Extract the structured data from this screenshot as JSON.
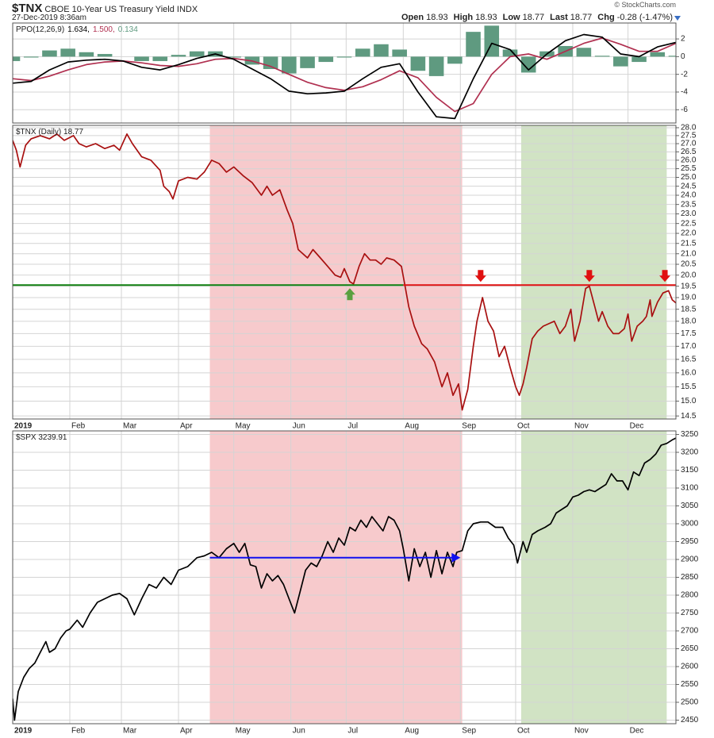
{
  "header": {
    "symbol": "$TNX",
    "name": "CBOE 10-Year US Treasury Yield",
    "exchange": "INDX",
    "timestamp": "27-Dec-2019 8:36am",
    "copyright": "© StockCharts.com",
    "quote": [
      {
        "label": "Open",
        "value": 18.93
      },
      {
        "label": "High",
        "value": 18.93
      },
      {
        "label": "Low",
        "value": 18.77
      },
      {
        "label": "Last",
        "value": 18.77
      },
      {
        "label": "Chg",
        "value": "-0.28 (-1.47%)"
      }
    ]
  },
  "shading": [
    {
      "x0": 107,
      "x1": 244,
      "color": "#f4b8bb"
    },
    {
      "x0": 276,
      "x1": 355,
      "color": "#c2d9b0"
    }
  ],
  "chart_data": [
    {
      "type": "line",
      "title": "PPO(12,26,9)",
      "legend_values": [
        "1.634,",
        "1.500,",
        "0.134"
      ],
      "xlim": [
        0,
        360
      ],
      "ylim": [
        -7.5,
        3.8
      ],
      "yticks": [
        2,
        0,
        -2,
        -4,
        -6
      ],
      "grid": true,
      "x": [
        0,
        10,
        20,
        30,
        40,
        50,
        60,
        70,
        80,
        90,
        100,
        110,
        120,
        130,
        140,
        150,
        160,
        170,
        180,
        190,
        200,
        210,
        220,
        230,
        240,
        250,
        260,
        270,
        280,
        290,
        300,
        310,
        320,
        330,
        340,
        350,
        360
      ],
      "series": [
        {
          "type": "bar",
          "color": "#5f9a80",
          "values": [
            -0.5,
            -0.1,
            0.7,
            0.9,
            0.5,
            0.3,
            0.0,
            -0.5,
            -0.5,
            0.2,
            0.6,
            0.6,
            -0.1,
            -0.9,
            -1.4,
            -1.9,
            -1.3,
            -0.6,
            -0.1,
            0.9,
            1.4,
            0.8,
            -1.6,
            -2.2,
            -0.8,
            2.8,
            3.5,
            0.8,
            -1.8,
            0.6,
            1.2,
            1.0,
            0.1,
            -1.1,
            -0.6,
            0.5,
            0.1
          ]
        },
        {
          "type": "line",
          "color": "#b03050",
          "values": [
            -2.5,
            -2.7,
            -2.2,
            -1.5,
            -0.9,
            -0.6,
            -0.5,
            -0.7,
            -1.0,
            -1.1,
            -0.8,
            -0.3,
            -0.2,
            -0.5,
            -1.1,
            -2.0,
            -2.9,
            -3.5,
            -3.8,
            -3.4,
            -2.6,
            -1.6,
            -2.4,
            -4.6,
            -6.2,
            -5.3,
            -2.0,
            0.0,
            0.3,
            -0.3,
            0.6,
            1.5,
            2.1,
            1.4,
            0.6,
            0.6,
            1.5
          ]
        },
        {
          "type": "line",
          "color": "#000000",
          "values": [
            -3.0,
            -2.8,
            -1.5,
            -0.6,
            -0.4,
            -0.3,
            -0.5,
            -1.2,
            -1.5,
            -0.9,
            -0.2,
            0.3,
            -0.3,
            -1.4,
            -2.5,
            -3.9,
            -4.2,
            -4.1,
            -3.9,
            -2.5,
            -1.2,
            -0.8,
            -4.0,
            -6.8,
            -7.0,
            -2.5,
            1.5,
            0.8,
            -1.5,
            0.3,
            1.8,
            2.5,
            2.2,
            0.3,
            0.0,
            1.1,
            1.6
          ]
        }
      ]
    },
    {
      "type": "line",
      "title": "$TNX (Daily) 18.77",
      "log_scale": true,
      "grid": true,
      "show_shading": true,
      "xlim": [
        0,
        360
      ],
      "xticks": [
        {
          "value": 0,
          "label": "2019"
        },
        {
          "value": 31,
          "label": "Feb"
        },
        {
          "value": 59,
          "label": "Mar"
        },
        {
          "value": 90,
          "label": "Apr"
        },
        {
          "value": 120,
          "label": "May"
        },
        {
          "value": 151,
          "label": "Jun"
        },
        {
          "value": 181,
          "label": "Jul"
        },
        {
          "value": 212,
          "label": "Aug"
        },
        {
          "value": 243,
          "label": "Sep"
        },
        {
          "value": 273,
          "label": "Oct"
        },
        {
          "value": 304,
          "label": "Nov"
        },
        {
          "value": 334,
          "label": "Dec"
        }
      ],
      "ylim": [
        14.4,
        28.15
      ],
      "yticks": [
        {
          "value": 28,
          "label": "28.0"
        },
        27.5,
        {
          "value": 27,
          "label": "27.0"
        },
        26.5,
        {
          "value": 26,
          "label": "26.0"
        },
        25.5,
        {
          "value": 25,
          "label": "25.0"
        },
        24.5,
        {
          "value": 24,
          "label": "24.0"
        },
        23.5,
        {
          "value": 23,
          "label": "23.0"
        },
        22.5,
        {
          "value": 22,
          "label": "22.0"
        },
        21.5,
        {
          "value": 21,
          "label": "21.0"
        },
        20.5,
        {
          "value": 20,
          "label": "20.0"
        },
        19.5,
        {
          "value": 19,
          "label": "19.0"
        },
        18.5,
        {
          "value": 18,
          "label": "18.0"
        },
        17.5,
        {
          "value": 17,
          "label": "17.0"
        },
        16.5,
        {
          "value": 16,
          "label": "16.0"
        },
        15.5,
        {
          "value": 15,
          "label": "15.0"
        },
        14.5
      ],
      "x": [
        0,
        2,
        4,
        7,
        10,
        15,
        20,
        24,
        28,
        33,
        36,
        40,
        45,
        50,
        55,
        58,
        62,
        65,
        70,
        75,
        80,
        82,
        85,
        87,
        90,
        95,
        100,
        104,
        108,
        112,
        116,
        120,
        125,
        130,
        135,
        138,
        141,
        145,
        149,
        152,
        155,
        160,
        163,
        167,
        171,
        175,
        178,
        180,
        183,
        185,
        188,
        191,
        194,
        197,
        200,
        203,
        207,
        211,
        213,
        215,
        218,
        222,
        225,
        229,
        233,
        236,
        239,
        242,
        244,
        247,
        250,
        252,
        255,
        258,
        261,
        264,
        267,
        270,
        273,
        275,
        277,
        279,
        282,
        285,
        288,
        291,
        294,
        297,
        300,
        303,
        305,
        308,
        311,
        313,
        316,
        318,
        320,
        323,
        326,
        329,
        332,
        334,
        336,
        339,
        342,
        344,
        346,
        347,
        350,
        353,
        356,
        358,
        360
      ],
      "series": [
        {
          "type": "line",
          "color": "#a81010",
          "values": [
            27.2,
            26.6,
            25.6,
            26.9,
            27.3,
            27.5,
            27.3,
            27.6,
            27.2,
            27.5,
            27.0,
            26.8,
            27.0,
            26.7,
            26.9,
            26.6,
            27.6,
            27.0,
            26.2,
            26.0,
            25.4,
            24.5,
            24.2,
            23.8,
            24.8,
            25.0,
            24.9,
            25.3,
            26.0,
            25.8,
            25.3,
            25.6,
            25.1,
            24.7,
            24.0,
            24.5,
            24.0,
            24.3,
            23.2,
            22.5,
            21.2,
            20.8,
            21.2,
            20.8,
            20.4,
            20.0,
            19.9,
            20.3,
            19.7,
            19.6,
            20.4,
            21.0,
            20.7,
            20.7,
            20.5,
            20.8,
            20.7,
            20.4,
            19.5,
            18.6,
            17.8,
            17.1,
            16.9,
            16.4,
            15.5,
            16.0,
            15.2,
            15.6,
            14.7,
            15.4,
            17.0,
            18.0,
            19.0,
            18.0,
            17.6,
            16.6,
            17.0,
            16.2,
            15.5,
            15.2,
            15.6,
            16.2,
            17.3,
            17.6,
            17.8,
            17.9,
            18.0,
            17.5,
            17.8,
            18.5,
            17.2,
            18.0,
            19.4,
            19.5,
            18.6,
            18.0,
            18.4,
            17.8,
            17.5,
            17.5,
            17.7,
            18.3,
            17.2,
            17.8,
            18.0,
            18.2,
            18.9,
            18.2,
            18.8,
            19.2,
            19.3,
            18.9,
            18.77
          ]
        }
      ],
      "hlines": [
        {
          "y": 19.55,
          "x0": 0,
          "x1": 212,
          "color": "#108010"
        },
        {
          "y": 19.55,
          "x0": 212,
          "x1": 360,
          "color": "#e01010"
        }
      ],
      "arrows": [
        {
          "x": 183,
          "direction": "up",
          "color": "#5aa040"
        },
        {
          "x": 254,
          "direction": "down",
          "color": "#e01010"
        },
        {
          "x": 313,
          "direction": "down",
          "color": "#e01010"
        },
        {
          "x": 354,
          "direction": "down",
          "color": "#e01010"
        }
      ]
    },
    {
      "type": "line",
      "title": "$SPX 3239.91",
      "grid": true,
      "show_shading": true,
      "xlim": [
        0,
        360
      ],
      "xticks": [
        {
          "value": 0,
          "label": "2019"
        },
        {
          "value": 31,
          "label": "Feb"
        },
        {
          "value": 59,
          "label": "Mar"
        },
        {
          "value": 90,
          "label": "Apr"
        },
        {
          "value": 120,
          "label": "May"
        },
        {
          "value": 151,
          "label": "Jun"
        },
        {
          "value": 181,
          "label": "Jul"
        },
        {
          "value": 212,
          "label": "Aug"
        },
        {
          "value": 243,
          "label": "Sep"
        },
        {
          "value": 273,
          "label": "Oct"
        },
        {
          "value": 304,
          "label": "Nov"
        },
        {
          "value": 334,
          "label": "Dec"
        }
      ],
      "ylim": [
        2440,
        3260
      ],
      "yticks": [
        3250,
        3200,
        3150,
        3100,
        3050,
        3000,
        2950,
        2900,
        2850,
        2800,
        2750,
        2700,
        2650,
        2600,
        2550,
        2500,
        2450
      ],
      "x": [
        0,
        1,
        3,
        6,
        9,
        12,
        15,
        18,
        20,
        23,
        26,
        29,
        31,
        35,
        38,
        42,
        46,
        50,
        54,
        58,
        62,
        66,
        70,
        74,
        78,
        82,
        86,
        90,
        95,
        100,
        104,
        108,
        112,
        116,
        120,
        123,
        126,
        129,
        132,
        135,
        138,
        141,
        144,
        147,
        150,
        153,
        156,
        159,
        162,
        165,
        168,
        171,
        174,
        177,
        180,
        183,
        186,
        189,
        192,
        195,
        198,
        201,
        204,
        207,
        210,
        212,
        215,
        218,
        221,
        224,
        227,
        230,
        233,
        236,
        239,
        241,
        244,
        247,
        250,
        254,
        258,
        262,
        266,
        269,
        272,
        274,
        277,
        279,
        282,
        285,
        289,
        292,
        295,
        298,
        301,
        304,
        307,
        310,
        313,
        316,
        319,
        322,
        325,
        328,
        331,
        334,
        337,
        340,
        343,
        346,
        349,
        352,
        355,
        358,
        360
      ],
      "series": [
        {
          "type": "line",
          "color": "#000000",
          "values": [
            2510,
            2450,
            2530,
            2570,
            2595,
            2610,
            2640,
            2670,
            2640,
            2650,
            2680,
            2700,
            2705,
            2730,
            2710,
            2750,
            2780,
            2790,
            2800,
            2805,
            2790,
            2745,
            2790,
            2830,
            2820,
            2850,
            2830,
            2870,
            2880,
            2905,
            2910,
            2920,
            2905,
            2930,
            2945,
            2920,
            2945,
            2885,
            2880,
            2820,
            2860,
            2840,
            2855,
            2830,
            2790,
            2750,
            2810,
            2870,
            2890,
            2880,
            2910,
            2950,
            2920,
            2960,
            2940,
            2990,
            2980,
            3010,
            2990,
            3020,
            3000,
            2980,
            3020,
            3010,
            2980,
            2930,
            2840,
            2930,
            2880,
            2920,
            2850,
            2925,
            2860,
            2920,
            2880,
            2920,
            2925,
            2980,
            3000,
            3005,
            3005,
            2990,
            2990,
            2960,
            2940,
            2890,
            2950,
            2920,
            2970,
            2980,
            2990,
            3000,
            3030,
            3040,
            3050,
            3075,
            3080,
            3090,
            3095,
            3090,
            3100,
            3110,
            3140,
            3120,
            3120,
            3095,
            3145,
            3135,
            3170,
            3180,
            3195,
            3220,
            3225,
            3235,
            3239.91
          ]
        }
      ],
      "hlines": [
        {
          "y": 2905,
          "x0": 107,
          "x1": 243,
          "color": "#1010f0",
          "arrow": true
        }
      ]
    }
  ]
}
